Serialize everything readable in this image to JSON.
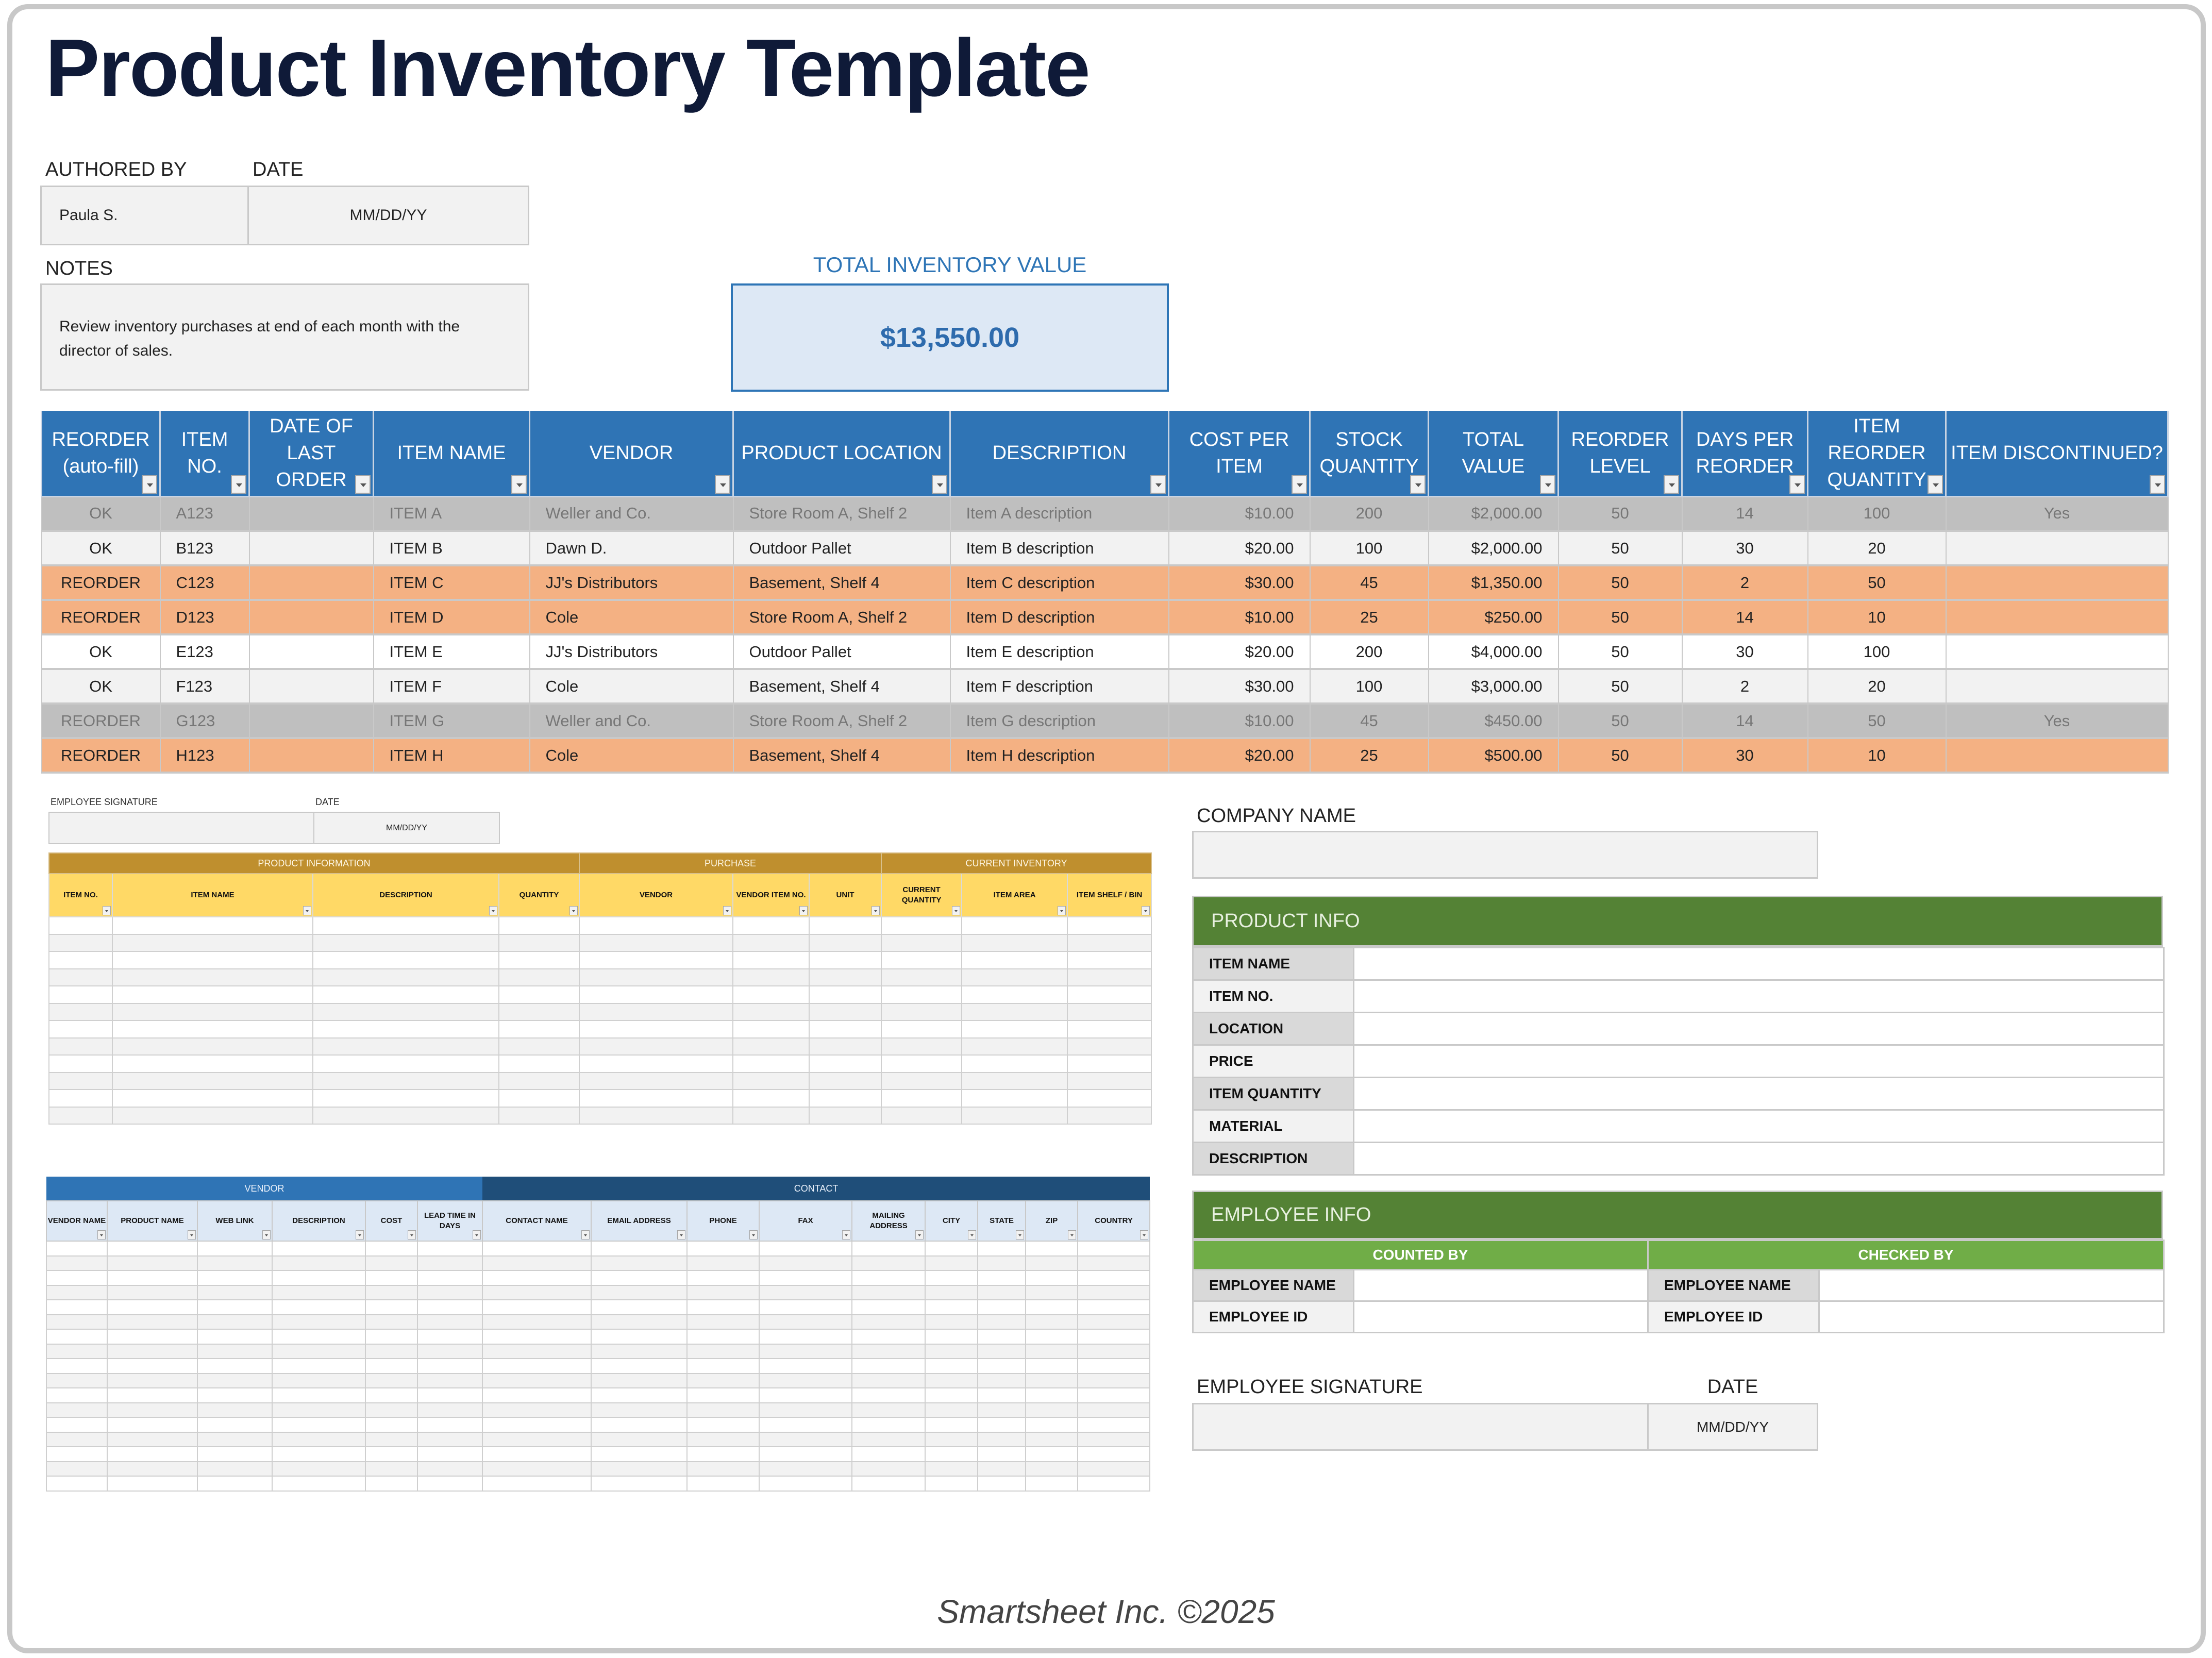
{
  "header": {
    "title": "Product Inventory Template"
  },
  "meta": {
    "authored_by_label": "AUTHORED BY",
    "authored_by_value": "Paula S.",
    "date_label": "DATE",
    "date_value": "MM/DD/YY",
    "notes_label": "NOTES",
    "notes_value": "Review inventory purchases at end of each month with the director of sales."
  },
  "total_inventory": {
    "label": "TOTAL INVENTORY VALUE",
    "value": "$13,550.00",
    "color": "#2e75b6"
  },
  "inventory_table": {
    "columns": [
      "REORDER (auto-fill)",
      "ITEM NO.",
      "DATE OF LAST ORDER",
      "ITEM NAME",
      "VENDOR",
      "PRODUCT LOCATION",
      "DESCRIPTION",
      "COST PER ITEM",
      "STOCK QUANTITY",
      "TOTAL VALUE",
      "REORDER LEVEL",
      "DAYS PER REORDER",
      "ITEM REORDER QUANTITY",
      "ITEM DISCONTINUED?"
    ],
    "colors": {
      "header": "#2f74b5",
      "reorder": "#f4b183",
      "discontinued": "#bfbfbf",
      "light": "#f2f2f2"
    },
    "rows": [
      {
        "style": "disc",
        "reorder": "OK",
        "item_no": "A123",
        "last_order": "",
        "name": "ITEM A",
        "vendor": "Weller and Co.",
        "location": "Store Room A, Shelf 2",
        "description": "Item A description",
        "cost": "$10.00",
        "qty": "200",
        "total": "$2,000.00",
        "level": "50",
        "days": "14",
        "reorder_qty": "100",
        "discontinued": "Yes"
      },
      {
        "style": "light",
        "reorder": "OK",
        "item_no": "B123",
        "last_order": "",
        "name": "ITEM B",
        "vendor": "Dawn D.",
        "location": "Outdoor Pallet",
        "description": "Item B description",
        "cost": "$20.00",
        "qty": "100",
        "total": "$2,000.00",
        "level": "50",
        "days": "30",
        "reorder_qty": "20",
        "discontinued": ""
      },
      {
        "style": "reorder",
        "reorder": "REORDER",
        "item_no": "C123",
        "last_order": "",
        "name": "ITEM C",
        "vendor": "JJ's Distributors",
        "location": "Basement, Shelf 4",
        "description": "Item C description",
        "cost": "$30.00",
        "qty": "45",
        "total": "$1,350.00",
        "level": "50",
        "days": "2",
        "reorder_qty": "50",
        "discontinued": ""
      },
      {
        "style": "reorder",
        "reorder": "REORDER",
        "item_no": "D123",
        "last_order": "",
        "name": "ITEM D",
        "vendor": "Cole",
        "location": "Store Room A, Shelf 2",
        "description": "Item D description",
        "cost": "$10.00",
        "qty": "25",
        "total": "$250.00",
        "level": "50",
        "days": "14",
        "reorder_qty": "10",
        "discontinued": ""
      },
      {
        "style": "white",
        "reorder": "OK",
        "item_no": "E123",
        "last_order": "",
        "name": "ITEM E",
        "vendor": "JJ's Distributors",
        "location": "Outdoor Pallet",
        "description": "Item E description",
        "cost": "$20.00",
        "qty": "200",
        "total": "$4,000.00",
        "level": "50",
        "days": "30",
        "reorder_qty": "100",
        "discontinued": ""
      },
      {
        "style": "light",
        "reorder": "OK",
        "item_no": "F123",
        "last_order": "",
        "name": "ITEM F",
        "vendor": "Cole",
        "location": "Basement, Shelf 4",
        "description": "Item F description",
        "cost": "$30.00",
        "qty": "100",
        "total": "$3,000.00",
        "level": "50",
        "days": "2",
        "reorder_qty": "20",
        "discontinued": ""
      },
      {
        "style": "disc",
        "reorder": "REORDER",
        "item_no": "G123",
        "last_order": "",
        "name": "ITEM G",
        "vendor": "Weller and Co.",
        "location": "Store Room A, Shelf 2",
        "description": "Item G description",
        "cost": "$10.00",
        "qty": "45",
        "total": "$450.00",
        "level": "50",
        "days": "14",
        "reorder_qty": "50",
        "discontinued": "Yes"
      },
      {
        "style": "reorder",
        "reorder": "REORDER",
        "item_no": "H123",
        "last_order": "",
        "name": "ITEM H",
        "vendor": "Cole",
        "location": "Basement, Shelf 4",
        "description": "Item H description",
        "cost": "$20.00",
        "qty": "25",
        "total": "$500.00",
        "level": "50",
        "days": "30",
        "reorder_qty": "10",
        "discontinued": ""
      }
    ]
  },
  "signature_small": {
    "label": "EMPLOYEE SIGNATURE",
    "date_label": "DATE",
    "date_value": "MM/DD/YY"
  },
  "product_info_table": {
    "groups": [
      {
        "label": "PRODUCT INFORMATION",
        "span": 4
      },
      {
        "label": "PURCHASE",
        "span": 3
      },
      {
        "label": "CURRENT INVENTORY",
        "span": 3
      }
    ],
    "columns": [
      "ITEM NO.",
      "ITEM NAME",
      "DESCRIPTION",
      "QUANTITY",
      "VENDOR",
      "VENDOR ITEM NO.",
      "UNIT",
      "CURRENT QUANTITY",
      "ITEM AREA",
      "ITEM SHELF / BIN"
    ],
    "empty_rows": 12,
    "colors": {
      "group": "#bf8f2e",
      "header": "#ffd966"
    }
  },
  "vendor_table": {
    "groups": [
      {
        "label": "VENDOR",
        "span": 6
      },
      {
        "label": "CONTACT",
        "span": 9
      }
    ],
    "columns": [
      "VENDOR NAME",
      "PRODUCT NAME",
      "WEB LINK",
      "DESCRIPTION",
      "COST",
      "LEAD TIME IN DAYS",
      "CONTACT NAME",
      "EMAIL ADDRESS",
      "PHONE",
      "FAX",
      "MAILING ADDRESS",
      "CITY",
      "STATE",
      "ZIP",
      "COUNTRY"
    ],
    "empty_rows": 17,
    "colors": {
      "vendor_group": "#2f74b5",
      "contact_group": "#1f4e79",
      "header": "#dde8f5"
    }
  },
  "right_panel": {
    "company_name_label": "COMPANY NAME",
    "company_name_value": "",
    "product_info": {
      "title": "PRODUCT INFO",
      "fields": [
        "ITEM NAME",
        "ITEM NO.",
        "LOCATION",
        "PRICE",
        "ITEM QUANTITY",
        "MATERIAL",
        "DESCRIPTION"
      ]
    },
    "employee_info": {
      "title": "EMPLOYEE INFO",
      "counted_by": "COUNTED BY",
      "checked_by": "CHECKED BY",
      "fields": [
        "EMPLOYEE NAME",
        "EMPLOYEE ID"
      ]
    },
    "signature_label": "EMPLOYEE SIGNATURE",
    "date_label": "DATE",
    "date_value": "MM/DD/YY",
    "colors": {
      "section_header": "#548235",
      "sub_header": "#70ad47"
    }
  },
  "footer": {
    "text": "Smartsheet Inc. ©2025"
  }
}
